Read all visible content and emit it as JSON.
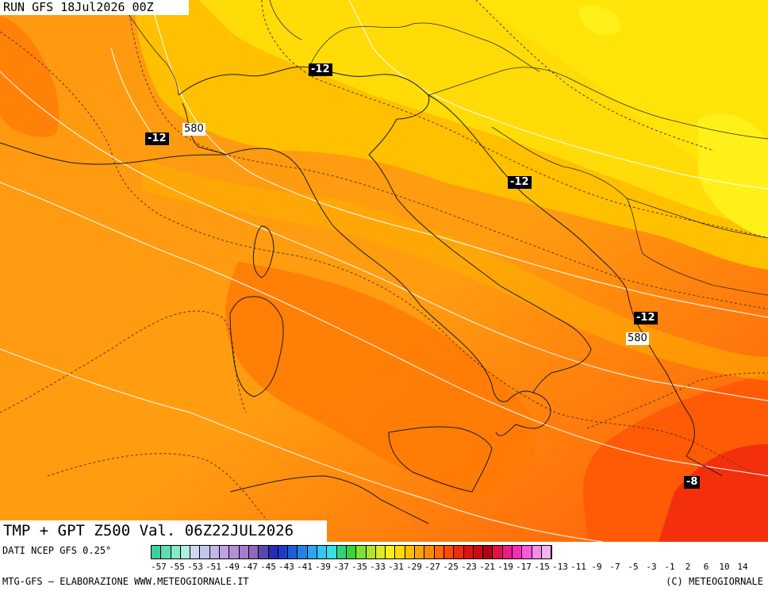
{
  "header": {
    "run": "RUN GFS 18Jul2026 00Z"
  },
  "title": {
    "text": "TMP + GPT Z500 Val. 06Z22JUL2026"
  },
  "isotherm_labels": [
    "-12",
    "-12",
    "-12",
    "-12",
    "-8"
  ],
  "geopotential_labels": [
    "580",
    "580"
  ],
  "footer": {
    "source": "DATI NCEP GFS 0.25°",
    "credit_left": "MTG-GFS – ELABORAZIONE WWW.METEOGIORNALE.IT",
    "credit_right": "(C) METEOGIORNALE"
  },
  "legend": {
    "ticks": [
      "-57",
      "-55",
      "-53",
      "-51",
      "-49",
      "-47",
      "-45",
      "-43",
      "-41",
      "-39",
      "-37",
      "-35",
      "-33",
      "-31",
      "-29",
      "-27",
      "-25",
      "-23",
      "-21",
      "-19",
      "-17",
      "-15",
      "-13",
      "-11",
      "-9",
      "-7",
      "-5",
      "-3",
      "-1",
      "2",
      "6",
      "10",
      "14"
    ],
    "colors": [
      "#3fd0a0",
      "#62dcb4",
      "#88e8c8",
      "#b0f0dc",
      "#cfd8ec",
      "#c4c8ec",
      "#c4b8e8",
      "#bda4e0",
      "#b290d6",
      "#a37cca",
      "#9068bc",
      "#5a4ab0",
      "#2a2ab4",
      "#1c3cc8",
      "#1f5ed8",
      "#2780e4",
      "#2fa4ee",
      "#33c6f2",
      "#34e0e0",
      "#30d27e",
      "#3ad436",
      "#80e02e",
      "#b2e42e",
      "#dcea28",
      "#f8f012",
      "#ffdc08",
      "#ffc000",
      "#ffa400",
      "#ff8a00",
      "#ff6c00",
      "#ff4a06",
      "#f02a0c",
      "#de1410",
      "#c80c14",
      "#ac0418",
      "#e2104a",
      "#ee1c86",
      "#f42cb8",
      "#f65ad8",
      "#f48ce6",
      "#f4b2ee"
    ]
  }
}
